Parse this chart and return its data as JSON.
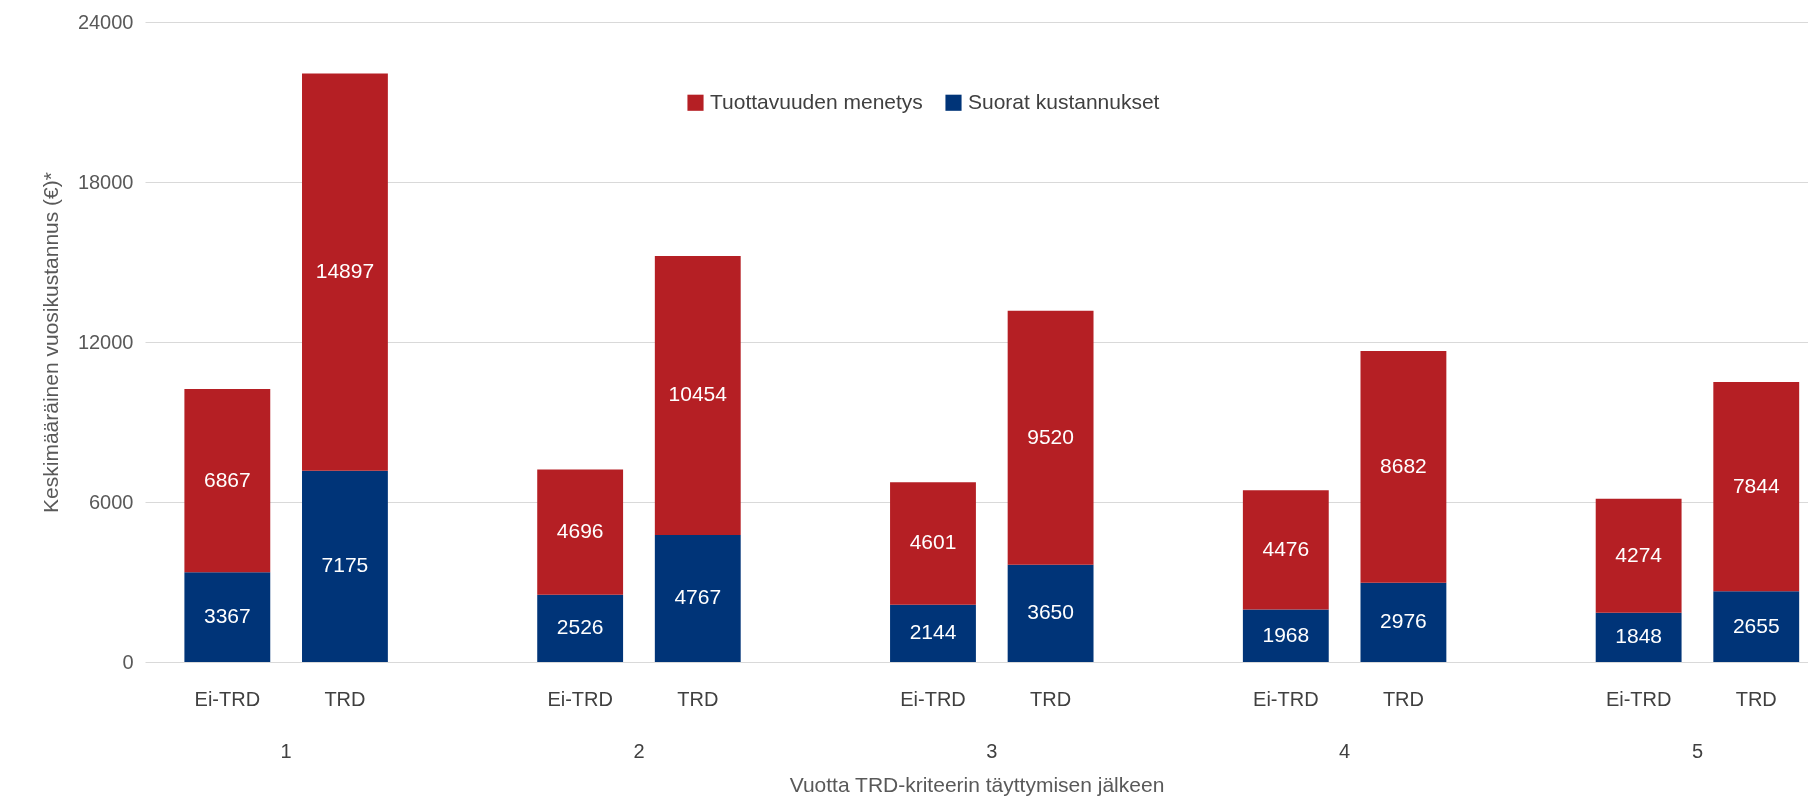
{
  "chart_data": {
    "type": "bar",
    "stacked": true,
    "ylabel": "Keskimääräinen vuosikustannus (€)*",
    "xlabel": "Vuotta TRD-kriteerin täyttymisen jälkeen",
    "categories": [
      "Ei-TRD",
      "TRD",
      "Ei-TRD",
      "TRD",
      "Ei-TRD",
      "TRD",
      "Ei-TRD",
      "TRD",
      "Ei-TRD",
      "TRD"
    ],
    "annotations": [
      "1",
      "2",
      "3",
      "4",
      "5"
    ],
    "series": [
      {
        "name": "Suorat kustannukset",
        "color": "#003478",
        "values": [
          3367,
          7175,
          2526,
          4767,
          2144,
          3650,
          1968,
          2976,
          1848,
          2655
        ]
      },
      {
        "name": "Tuottavuuden menetys",
        "color": "#b51f24",
        "values": [
          6867,
          14897,
          4696,
          10454,
          4601,
          9520,
          4476,
          8682,
          4274,
          7844
        ]
      }
    ],
    "ylim": [
      0,
      24000
    ],
    "yticks": [
      0,
      6000,
      12000,
      18000,
      24000
    ],
    "grid": "y",
    "legend": "top",
    "data_labels": true
  }
}
